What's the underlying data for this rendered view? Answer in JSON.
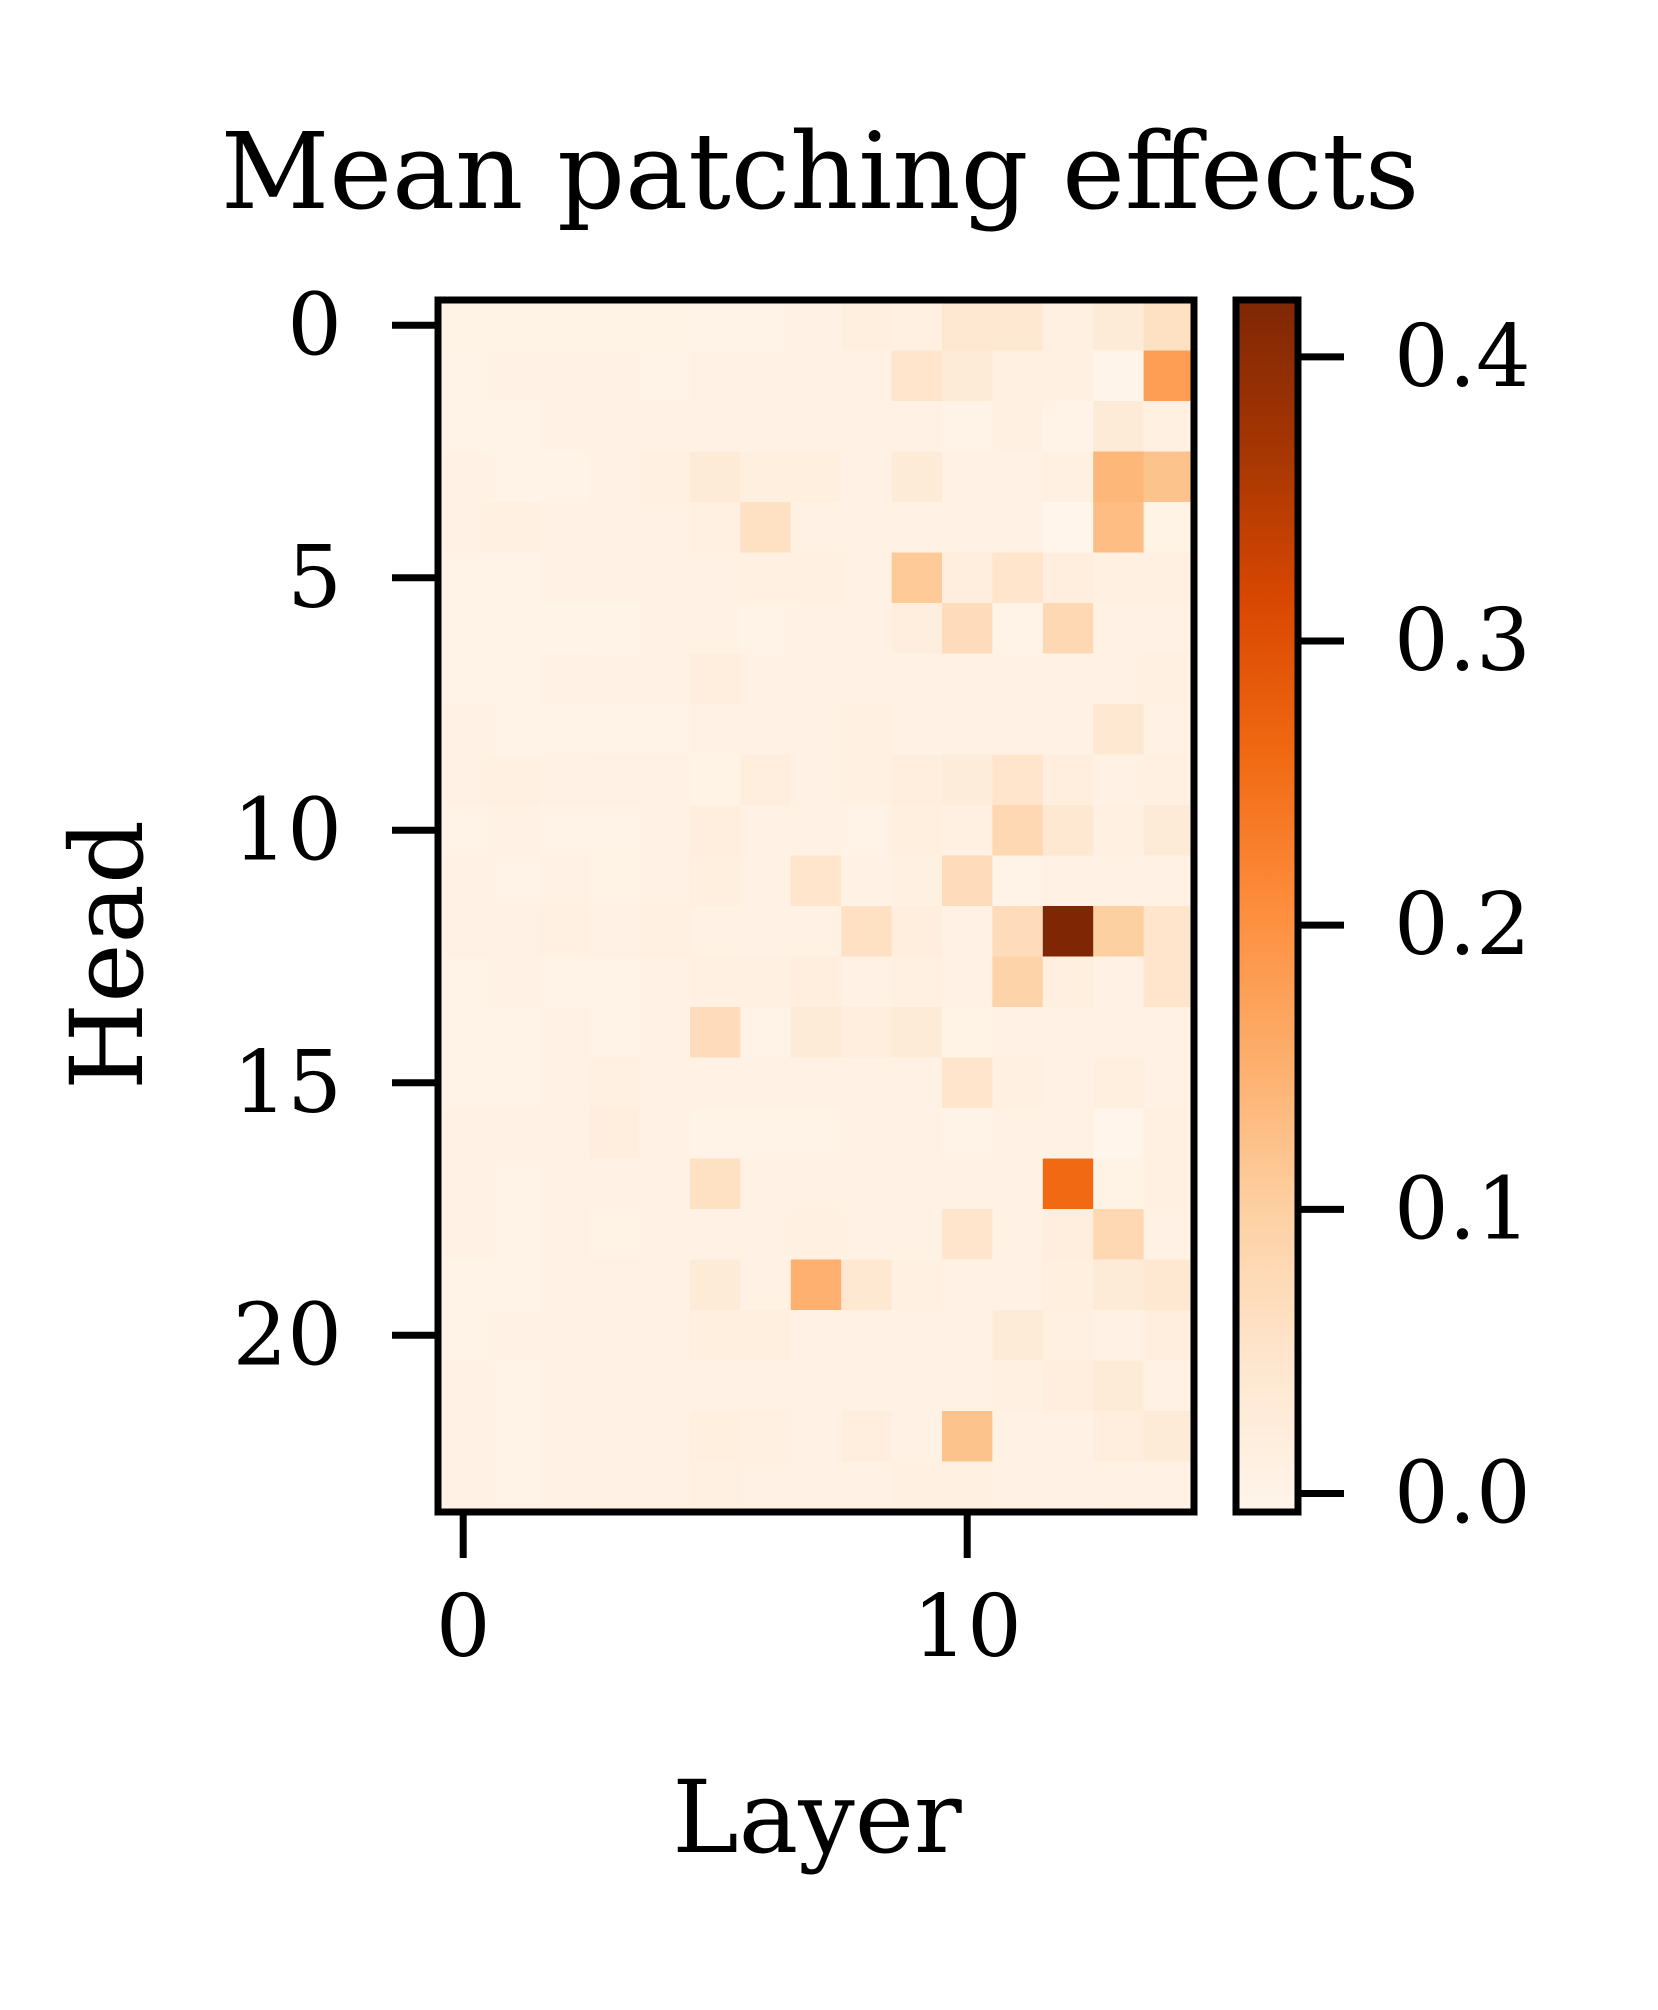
{
  "chart_data": {
    "type": "heatmap",
    "title": "Mean patching effects",
    "xlabel": "Layer",
    "ylabel": "Head",
    "n_layers": 15,
    "n_heads": 24,
    "x_ticks": [
      0,
      10
    ],
    "y_ticks": [
      0,
      5,
      10,
      15,
      20
    ],
    "colorbar": {
      "min": -0.0065,
      "max": 0.42,
      "ticks": [
        0.0,
        0.1,
        0.2,
        0.3,
        0.4
      ],
      "tick_labels": [
        "0.0",
        "0.1",
        "0.2",
        "0.3",
        "0.4"
      ],
      "colormap": "Oranges",
      "stops": [
        "#fff5eb",
        "#fee6ce",
        "#fdd0a2",
        "#fdae6b",
        "#fd8d3c",
        "#f16913",
        "#d94801",
        "#a63603",
        "#7f2704"
      ]
    },
    "values": [
      [
        0.002,
        0.002,
        0.002,
        0.002,
        0.002,
        0.003,
        0.003,
        0.004,
        0.015,
        0.01,
        0.04,
        0.04,
        0.01,
        0.03,
        0.06
      ],
      [
        0.003,
        0.004,
        0.004,
        0.004,
        0.003,
        0.004,
        0.004,
        0.005,
        0.006,
        0.05,
        0.03,
        0.01,
        0.012,
        -0.004,
        0.18
      ],
      [
        0.003,
        0.003,
        0.005,
        0.004,
        0.005,
        0.005,
        0.006,
        0.005,
        0.004,
        0.004,
        0.0,
        0.01,
        0.0,
        0.03,
        0.01
      ],
      [
        0.004,
        0.003,
        0.003,
        0.006,
        0.012,
        0.03,
        0.015,
        0.016,
        0.004,
        0.03,
        0.005,
        0.005,
        0.012,
        0.14,
        0.12
      ],
      [
        0.006,
        0.01,
        0.006,
        0.005,
        0.005,
        0.01,
        0.06,
        0.004,
        0.004,
        0.008,
        0.008,
        0.006,
        -0.005,
        0.13,
        0.002
      ],
      [
        0.003,
        0.003,
        0.004,
        0.004,
        0.008,
        0.005,
        0.012,
        0.012,
        0.008,
        0.11,
        0.02,
        0.05,
        0.02,
        0.012,
        0.012
      ],
      [
        0.003,
        0.003,
        0.003,
        0.003,
        0.004,
        0.005,
        0.003,
        0.004,
        0.006,
        0.02,
        0.07,
        0.0,
        0.08,
        0.005,
        0.008
      ],
      [
        0.003,
        0.003,
        0.006,
        0.005,
        0.006,
        0.018,
        0.005,
        0.005,
        0.004,
        0.005,
        0.005,
        0.005,
        0.005,
        0.008,
        0.01
      ],
      [
        0.004,
        0.003,
        0.003,
        0.003,
        0.003,
        0.004,
        0.004,
        0.005,
        0.01,
        0.006,
        0.008,
        0.006,
        0.004,
        0.04,
        0.004
      ],
      [
        0.004,
        0.01,
        0.006,
        0.004,
        0.005,
        0.002,
        0.02,
        0.006,
        0.012,
        0.018,
        0.025,
        0.05,
        0.02,
        0.004,
        0.01
      ],
      [
        0.003,
        0.004,
        0.003,
        0.003,
        0.004,
        0.02,
        0.005,
        0.005,
        0.003,
        0.015,
        0.012,
        0.08,
        0.04,
        0.01,
        0.03
      ],
      [
        0.004,
        0.003,
        0.004,
        0.002,
        0.004,
        0.015,
        0.007,
        0.05,
        0.004,
        0.01,
        0.07,
        0.003,
        0.006,
        0.006,
        0.008
      ],
      [
        0.006,
        0.004,
        0.01,
        0.008,
        0.012,
        0.006,
        0.005,
        0.005,
        0.06,
        0.02,
        0.004,
        0.07,
        0.42,
        0.1,
        0.05
      ],
      [
        0.003,
        0.004,
        0.003,
        0.003,
        0.006,
        0.012,
        0.012,
        0.02,
        0.008,
        0.012,
        0.008,
        0.09,
        0.015,
        0.006,
        0.05
      ],
      [
        0.003,
        0.003,
        0.004,
        0.003,
        0.005,
        0.07,
        0.003,
        0.03,
        0.02,
        0.03,
        0.002,
        0.006,
        0.005,
        0.004,
        0.004
      ],
      [
        0.003,
        0.003,
        0.004,
        0.012,
        0.005,
        0.004,
        0.004,
        0.004,
        0.004,
        0.004,
        0.05,
        0.01,
        0.004,
        0.015,
        0.004
      ],
      [
        0.005,
        0.008,
        0.006,
        0.02,
        0.004,
        0.003,
        0.003,
        0.003,
        0.004,
        0.006,
        0.003,
        0.004,
        0.007,
        -0.006,
        0.01
      ],
      [
        0.004,
        0.003,
        0.004,
        0.004,
        0.004,
        0.06,
        0.004,
        0.004,
        0.004,
        0.004,
        0.005,
        0.005,
        0.26,
        0.002,
        0.01
      ],
      [
        0.004,
        0.003,
        0.005,
        0.002,
        0.005,
        0.004,
        0.005,
        0.01,
        0.004,
        0.005,
        0.05,
        0.005,
        0.02,
        0.08,
        0.005
      ],
      [
        0.003,
        0.003,
        0.004,
        0.006,
        0.005,
        0.03,
        0.004,
        0.15,
        0.04,
        0.01,
        0.005,
        0.005,
        0.015,
        0.03,
        0.04
      ],
      [
        0.003,
        0.004,
        0.004,
        0.005,
        0.006,
        0.015,
        0.015,
        0.004,
        0.004,
        0.004,
        0.004,
        0.03,
        0.01,
        0.005,
        0.02
      ],
      [
        0.004,
        0.003,
        0.004,
        0.004,
        0.005,
        0.004,
        0.004,
        0.004,
        0.004,
        0.004,
        0.004,
        0.01,
        0.018,
        0.03,
        0.004
      ],
      [
        0.004,
        0.003,
        0.004,
        0.004,
        0.005,
        0.015,
        0.01,
        0.008,
        0.018,
        0.005,
        0.12,
        0.005,
        0.005,
        0.02,
        0.03
      ],
      [
        0.004,
        0.003,
        0.004,
        0.006,
        0.008,
        0.01,
        0.006,
        0.006,
        0.006,
        0.01,
        0.01,
        0.006,
        0.004,
        0.006,
        0.004
      ]
    ]
  }
}
